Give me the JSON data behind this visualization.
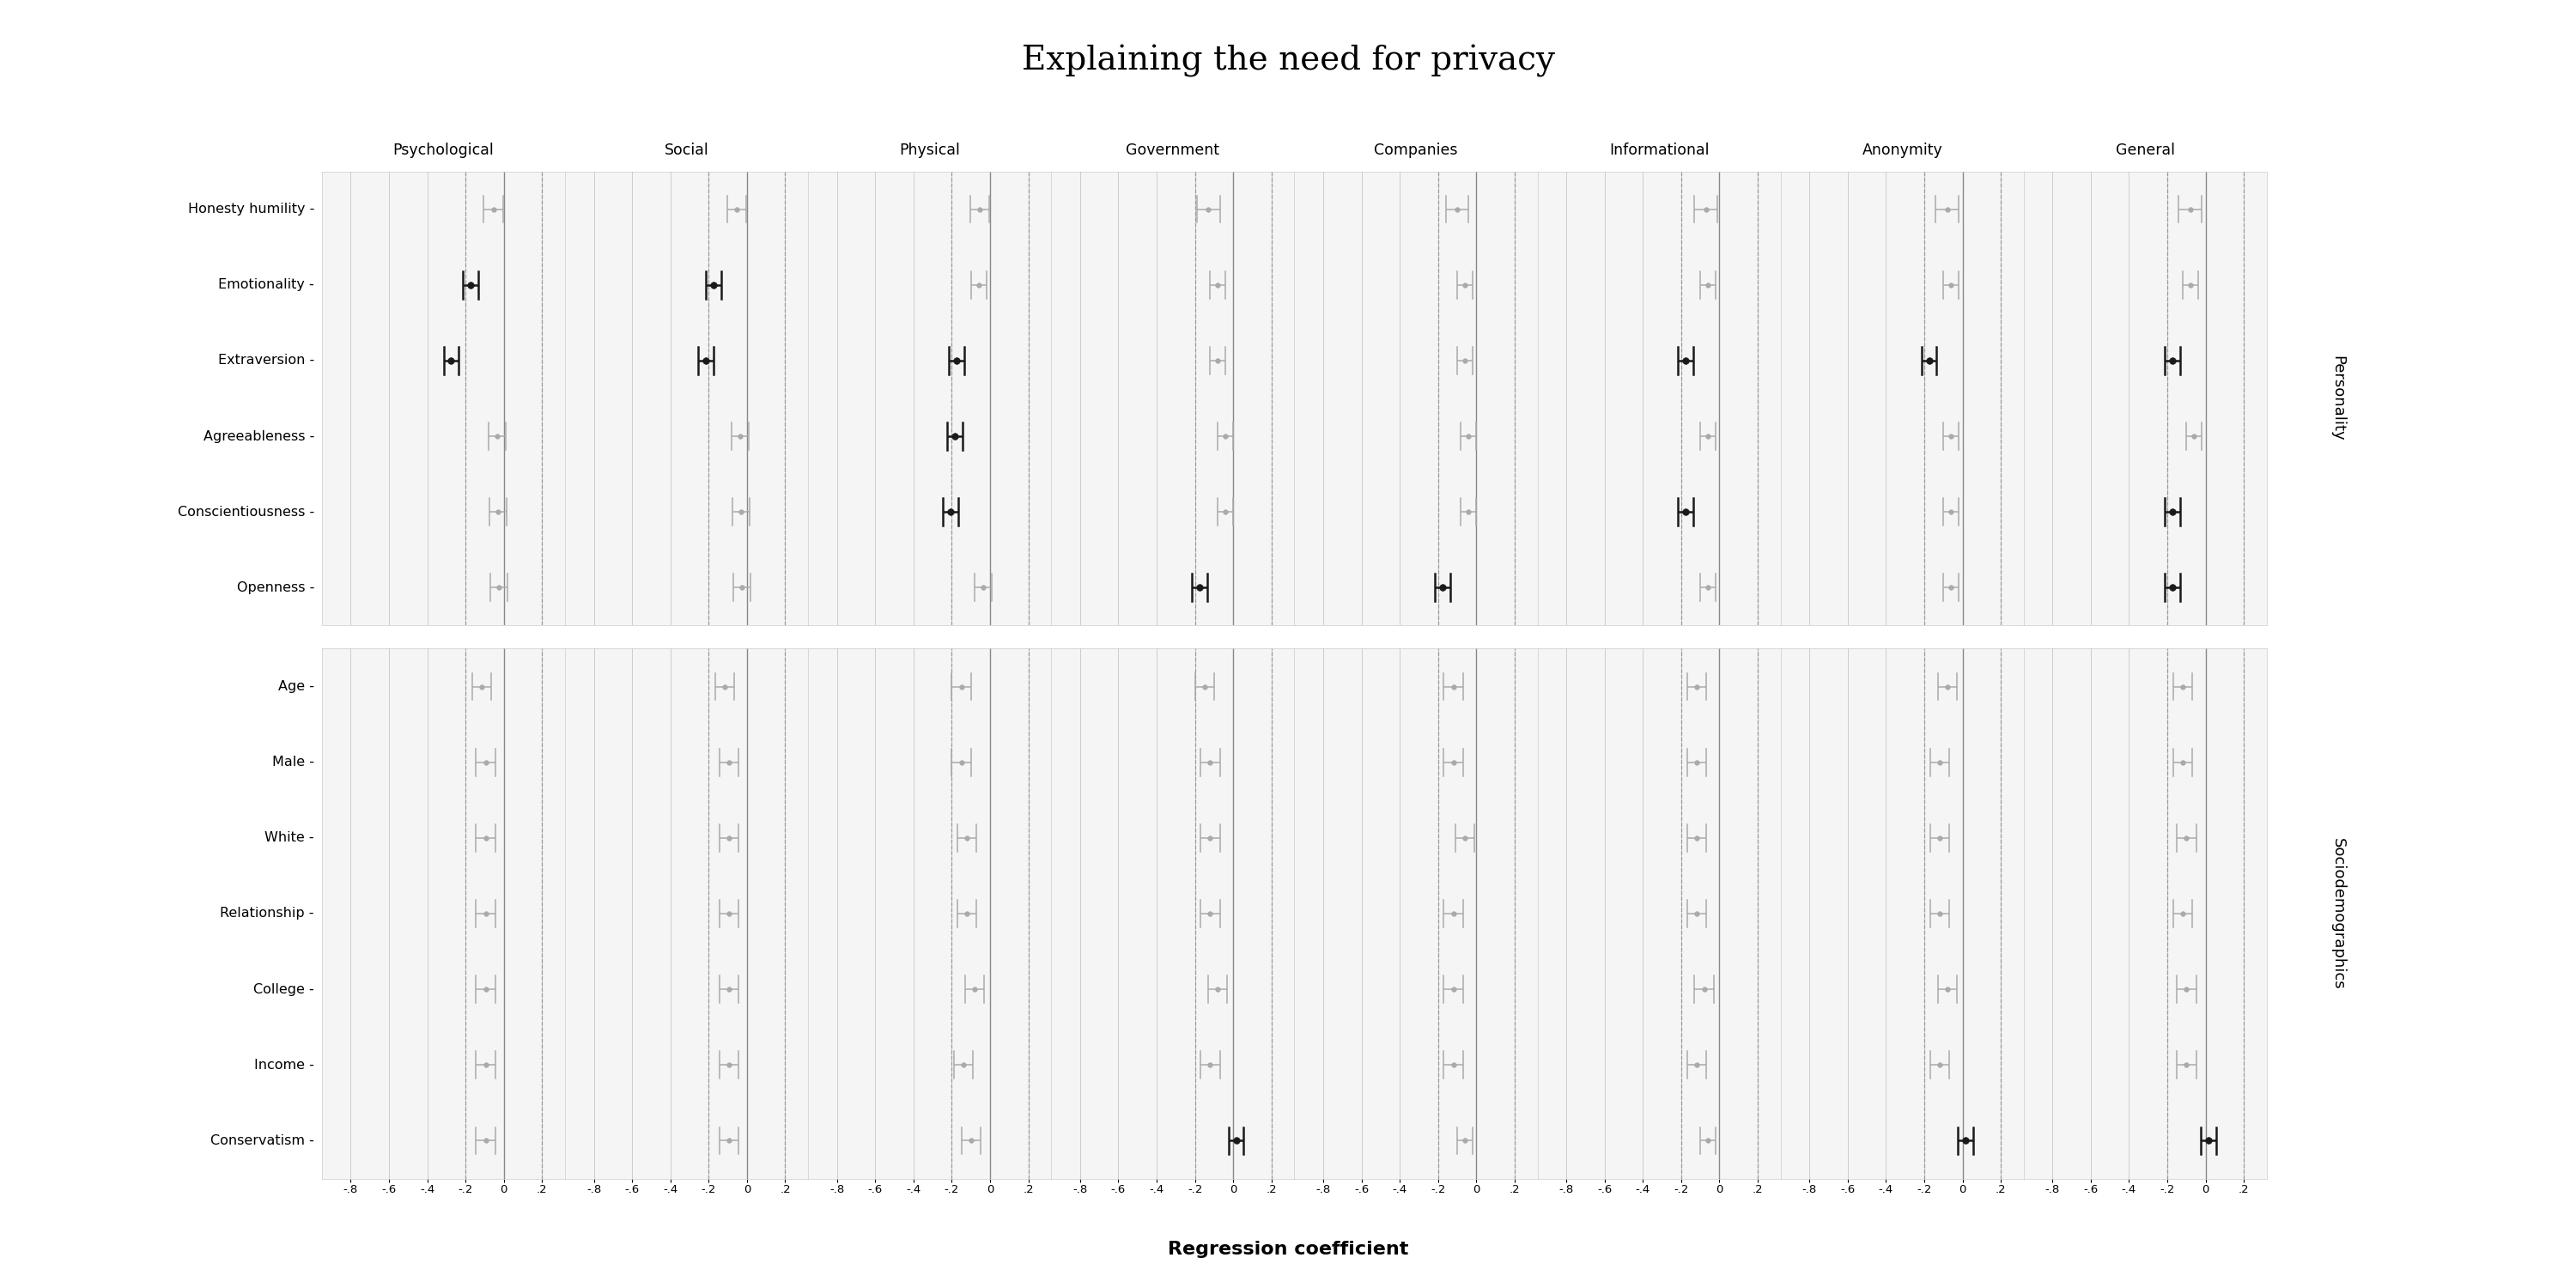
{
  "title": "Explaining the need for privacy",
  "xlabel": "Regression coefficient",
  "columns": [
    "Psychological",
    "Social",
    "Physical",
    "Government",
    "Companies",
    "Informational",
    "Anonymity",
    "General"
  ],
  "personality_rows": [
    "Honesty humility",
    "Emotionality",
    "Extraversion",
    "Agreeableness",
    "Conscientiousness",
    "Openness"
  ],
  "sociodem_rows": [
    "Age",
    "Male",
    "White",
    "Relationship",
    "College",
    "Income",
    "Conservatism"
  ],
  "xticks": [
    -0.8,
    -0.6,
    -0.4,
    -0.2,
    0.0,
    0.2
  ],
  "xticklabels": [
    "-.8",
    "-.6",
    "-.4",
    "-.2",
    "0",
    ".2"
  ],
  "xlim": [
    -0.95,
    0.32
  ],
  "panel_bg": "#ebebeb",
  "strip_bg": "#d4d4d4",
  "white_row": "#ffffff",
  "black_color": "#1a1a1a",
  "gray_color": "#aaaaaa",
  "coef_data": {
    "Psychological": {
      "Honesty humility": [
        -0.055,
        -0.105,
        -0.005,
        false
      ],
      "Emotionality": [
        -0.175,
        -0.215,
        -0.135,
        true
      ],
      "Extraversion": [
        -0.275,
        -0.315,
        -0.235,
        true
      ],
      "Agreeableness": [
        -0.035,
        -0.08,
        0.01,
        false
      ],
      "Conscientiousness": [
        -0.03,
        -0.075,
        0.015,
        false
      ],
      "Openness": [
        -0.025,
        -0.07,
        0.02,
        false
      ],
      "Age": [
        -0.115,
        -0.165,
        -0.065,
        false
      ],
      "Male": [
        -0.095,
        -0.145,
        -0.045,
        false
      ],
      "White": [
        -0.095,
        -0.145,
        -0.045,
        false
      ],
      "Relationship": [
        -0.095,
        -0.145,
        -0.045,
        false
      ],
      "College": [
        -0.095,
        -0.145,
        -0.045,
        false
      ],
      "Income": [
        -0.095,
        -0.145,
        -0.045,
        false
      ],
      "Conservatism": [
        -0.095,
        -0.145,
        -0.045,
        false
      ]
    },
    "Social": {
      "Honesty humility": [
        -0.055,
        -0.105,
        -0.005,
        false
      ],
      "Emotionality": [
        -0.175,
        -0.215,
        -0.135,
        true
      ],
      "Extraversion": [
        -0.215,
        -0.255,
        -0.175,
        true
      ],
      "Agreeableness": [
        -0.035,
        -0.08,
        0.01,
        false
      ],
      "Conscientiousness": [
        -0.03,
        -0.075,
        0.015,
        false
      ],
      "Openness": [
        -0.025,
        -0.07,
        0.02,
        false
      ],
      "Age": [
        -0.115,
        -0.165,
        -0.065,
        false
      ],
      "Male": [
        -0.095,
        -0.145,
        -0.045,
        false
      ],
      "White": [
        -0.095,
        -0.145,
        -0.045,
        false
      ],
      "Relationship": [
        -0.095,
        -0.145,
        -0.045,
        false
      ],
      "College": [
        -0.095,
        -0.145,
        -0.045,
        false
      ],
      "Income": [
        -0.095,
        -0.145,
        -0.045,
        false
      ],
      "Conservatism": [
        -0.095,
        -0.145,
        -0.045,
        false
      ]
    },
    "Physical": {
      "Honesty humility": [
        -0.055,
        -0.105,
        -0.005,
        false
      ],
      "Emotionality": [
        -0.06,
        -0.1,
        -0.02,
        false
      ],
      "Extraversion": [
        -0.175,
        -0.215,
        -0.135,
        true
      ],
      "Agreeableness": [
        -0.185,
        -0.225,
        -0.145,
        true
      ],
      "Conscientiousness": [
        -0.205,
        -0.245,
        -0.165,
        true
      ],
      "Openness": [
        -0.035,
        -0.08,
        0.01,
        false
      ],
      "Age": [
        -0.15,
        -0.2,
        -0.1,
        false
      ],
      "Male": [
        -0.15,
        -0.2,
        -0.1,
        false
      ],
      "White": [
        -0.12,
        -0.17,
        -0.07,
        false
      ],
      "Relationship": [
        -0.12,
        -0.17,
        -0.07,
        false
      ],
      "College": [
        -0.08,
        -0.13,
        -0.03,
        false
      ],
      "Income": [
        -0.14,
        -0.19,
        -0.09,
        false
      ],
      "Conservatism": [
        -0.1,
        -0.15,
        -0.05,
        false
      ]
    },
    "Government": {
      "Honesty humility": [
        -0.13,
        -0.19,
        -0.07,
        false
      ],
      "Emotionality": [
        -0.08,
        -0.12,
        -0.04,
        false
      ],
      "Extraversion": [
        -0.08,
        -0.12,
        -0.04,
        false
      ],
      "Agreeableness": [
        -0.04,
        -0.08,
        0.0,
        false
      ],
      "Conscientiousness": [
        -0.04,
        -0.08,
        0.0,
        false
      ],
      "Openness": [
        -0.175,
        -0.215,
        -0.135,
        true
      ],
      "Age": [
        -0.15,
        -0.2,
        -0.1,
        false
      ],
      "Male": [
        -0.12,
        -0.17,
        -0.07,
        false
      ],
      "White": [
        -0.12,
        -0.17,
        -0.07,
        false
      ],
      "Relationship": [
        -0.12,
        -0.17,
        -0.07,
        false
      ],
      "College": [
        -0.08,
        -0.13,
        -0.03,
        false
      ],
      "Income": [
        -0.12,
        -0.17,
        -0.07,
        false
      ],
      "Conservatism": [
        0.015,
        -0.025,
        0.055,
        true
      ]
    },
    "Companies": {
      "Honesty humility": [
        -0.1,
        -0.16,
        -0.04,
        false
      ],
      "Emotionality": [
        -0.06,
        -0.1,
        -0.02,
        false
      ],
      "Extraversion": [
        -0.06,
        -0.1,
        -0.02,
        false
      ],
      "Agreeableness": [
        -0.04,
        -0.08,
        0.0,
        false
      ],
      "Conscientiousness": [
        -0.04,
        -0.08,
        0.0,
        false
      ],
      "Openness": [
        -0.175,
        -0.215,
        -0.135,
        true
      ],
      "Age": [
        -0.12,
        -0.17,
        -0.07,
        false
      ],
      "Male": [
        -0.12,
        -0.17,
        -0.07,
        false
      ],
      "White": [
        -0.06,
        -0.11,
        -0.01,
        false
      ],
      "Relationship": [
        -0.12,
        -0.17,
        -0.07,
        false
      ],
      "College": [
        -0.12,
        -0.17,
        -0.07,
        false
      ],
      "Income": [
        -0.12,
        -0.17,
        -0.07,
        false
      ],
      "Conservatism": [
        -0.06,
        -0.1,
        -0.02,
        false
      ]
    },
    "Informational": {
      "Honesty humility": [
        -0.07,
        -0.13,
        -0.01,
        false
      ],
      "Emotionality": [
        -0.06,
        -0.1,
        -0.02,
        false
      ],
      "Extraversion": [
        -0.175,
        -0.215,
        -0.135,
        true
      ],
      "Agreeableness": [
        -0.06,
        -0.1,
        -0.02,
        false
      ],
      "Conscientiousness": [
        -0.175,
        -0.215,
        -0.135,
        true
      ],
      "Openness": [
        -0.06,
        -0.1,
        -0.02,
        false
      ],
      "Age": [
        -0.12,
        -0.17,
        -0.07,
        false
      ],
      "Male": [
        -0.12,
        -0.17,
        -0.07,
        false
      ],
      "White": [
        -0.12,
        -0.17,
        -0.07,
        false
      ],
      "Relationship": [
        -0.12,
        -0.17,
        -0.07,
        false
      ],
      "College": [
        -0.08,
        -0.13,
        -0.03,
        false
      ],
      "Income": [
        -0.12,
        -0.17,
        -0.07,
        false
      ],
      "Conservatism": [
        -0.06,
        -0.1,
        -0.02,
        false
      ]
    },
    "Anonymity": {
      "Honesty humility": [
        -0.08,
        -0.14,
        -0.02,
        false
      ],
      "Emotionality": [
        -0.06,
        -0.1,
        -0.02,
        false
      ],
      "Extraversion": [
        -0.175,
        -0.215,
        -0.135,
        true
      ],
      "Agreeableness": [
        -0.06,
        -0.1,
        -0.02,
        false
      ],
      "Conscientiousness": [
        -0.06,
        -0.1,
        -0.02,
        false
      ],
      "Openness": [
        -0.06,
        -0.1,
        -0.02,
        false
      ],
      "Age": [
        -0.08,
        -0.13,
        -0.03,
        false
      ],
      "Male": [
        -0.12,
        -0.17,
        -0.07,
        false
      ],
      "White": [
        -0.12,
        -0.17,
        -0.07,
        false
      ],
      "Relationship": [
        -0.12,
        -0.17,
        -0.07,
        false
      ],
      "College": [
        -0.08,
        -0.13,
        -0.03,
        false
      ],
      "Income": [
        -0.12,
        -0.17,
        -0.07,
        false
      ],
      "Conservatism": [
        0.015,
        -0.025,
        0.055,
        true
      ]
    },
    "General": {
      "Honesty humility": [
        -0.08,
        -0.14,
        -0.02,
        false
      ],
      "Emotionality": [
        -0.08,
        -0.12,
        -0.04,
        false
      ],
      "Extraversion": [
        -0.175,
        -0.215,
        -0.135,
        true
      ],
      "Agreeableness": [
        -0.06,
        -0.1,
        -0.02,
        false
      ],
      "Conscientiousness": [
        -0.175,
        -0.215,
        -0.135,
        true
      ],
      "Openness": [
        -0.175,
        -0.215,
        -0.135,
        true
      ],
      "Age": [
        -0.12,
        -0.17,
        -0.07,
        false
      ],
      "Male": [
        -0.12,
        -0.17,
        -0.07,
        false
      ],
      "White": [
        -0.1,
        -0.15,
        -0.05,
        false
      ],
      "Relationship": [
        -0.12,
        -0.17,
        -0.07,
        false
      ],
      "College": [
        -0.1,
        -0.15,
        -0.05,
        false
      ],
      "Income": [
        -0.1,
        -0.15,
        -0.05,
        false
      ],
      "Conservatism": [
        0.015,
        -0.025,
        0.055,
        true
      ]
    }
  }
}
